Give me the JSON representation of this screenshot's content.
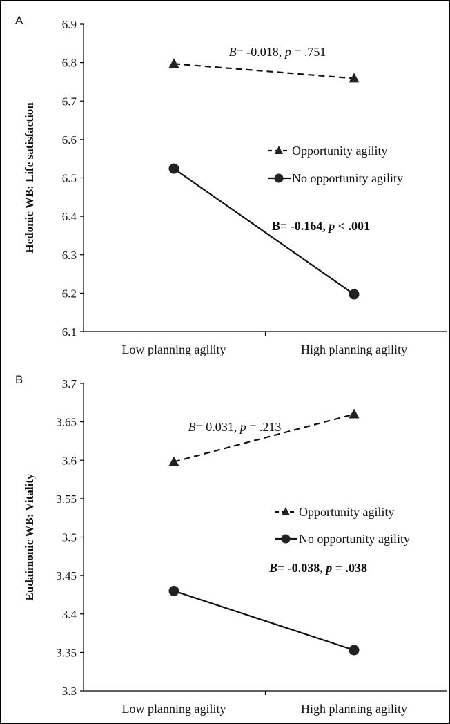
{
  "chart_data": [
    {
      "type": "line",
      "panel_label": "A",
      "ylabel": "Hedonic WB: Life satisfaction",
      "categories": [
        "Low planning agility",
        "High planning agility"
      ],
      "ylim": [
        6.1,
        6.9
      ],
      "yticks": [
        6.1,
        6.2,
        6.3,
        6.4,
        6.5,
        6.6,
        6.7,
        6.8,
        6.9
      ],
      "ytick_labels": [
        "6.1",
        "6.2",
        "6.3",
        "6.4",
        "6.5",
        "6.6",
        "6.7",
        "6.8",
        "6.9"
      ],
      "legend_placement": "right",
      "series": [
        {
          "name": "Opportunity agility",
          "style": "dashed",
          "marker": "triangle",
          "values": [
            6.797,
            6.759
          ]
        },
        {
          "name": "No opportunity agility",
          "style": "solid",
          "marker": "circle",
          "values": [
            6.524,
            6.197
          ]
        }
      ],
      "annotations": [
        {
          "series": 0,
          "parts": [
            {
              "t": "B",
              "i": true
            },
            {
              "t": "= -0.018, "
            },
            {
              "t": "p",
              "i": true
            },
            {
              "t": " = .751"
            }
          ],
          "bold": false
        },
        {
          "series": 1,
          "parts": [
            {
              "t": "B= -0.164, "
            },
            {
              "t": "p",
              "i": true
            },
            {
              "t": " < .001"
            }
          ],
          "bold": true
        }
      ]
    },
    {
      "type": "line",
      "panel_label": "B",
      "ylabel": "Eudaimonic WB: Vitality",
      "categories": [
        "Low planning agility",
        "High planning agility"
      ],
      "ylim": [
        3.3,
        3.7
      ],
      "yticks": [
        3.3,
        3.35,
        3.4,
        3.45,
        3.5,
        3.55,
        3.6,
        3.65,
        3.7
      ],
      "ytick_labels": [
        "3.3",
        "3.35",
        "3.4",
        "3.45",
        "3.5",
        "3.55",
        "3.6",
        "3.65",
        "3.7"
      ],
      "legend_placement": "right",
      "series": [
        {
          "name": "Opportunity agility",
          "style": "dashed",
          "marker": "triangle",
          "values": [
            3.598,
            3.66
          ]
        },
        {
          "name": "No opportunity agility",
          "style": "solid",
          "marker": "circle",
          "values": [
            3.43,
            3.353
          ]
        }
      ],
      "annotations": [
        {
          "series": 0,
          "parts": [
            {
              "t": "B",
              "i": true
            },
            {
              "t": "= 0.031, "
            },
            {
              "t": "p",
              "i": true
            },
            {
              "t": " = .213"
            }
          ],
          "bold": false
        },
        {
          "series": 1,
          "parts": [
            {
              "t": "B",
              "i": true
            },
            {
              "t": "= -0.038, "
            },
            {
              "t": "p",
              "i": true
            },
            {
              "t": " = .038"
            }
          ],
          "bold": true
        }
      ]
    }
  ]
}
